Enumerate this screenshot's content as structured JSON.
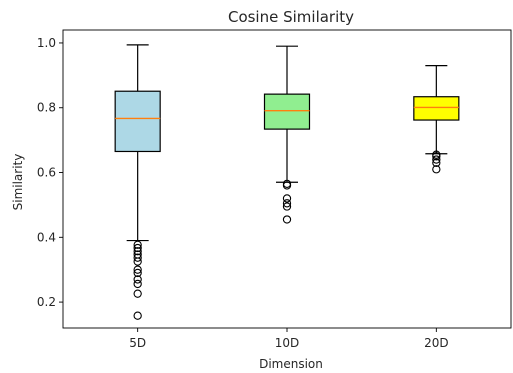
{
  "chart_data": {
    "type": "box",
    "title": "Cosine Similarity",
    "xlabel": "Dimension",
    "ylabel": "Similarity",
    "ylim": [
      0.12,
      1.04
    ],
    "yticks": [
      0.2,
      0.4,
      0.6,
      0.8,
      1.0
    ],
    "ytick_labels": [
      "0.2",
      "0.4",
      "0.6",
      "0.8",
      "1.0"
    ],
    "grid": false,
    "categories": [
      "5D",
      "10D",
      "20D"
    ],
    "boxes": [
      {
        "category": "5D",
        "fill": "#add8e6",
        "whisker_low": 0.39,
        "q1": 0.665,
        "median": 0.767,
        "q3": 0.851,
        "whisker_high": 0.994,
        "outliers": [
          0.377,
          0.367,
          0.357,
          0.347,
          0.337,
          0.325,
          0.3,
          0.29,
          0.27,
          0.256,
          0.226,
          0.158
        ]
      },
      {
        "category": "10D",
        "fill": "#90ee90",
        "whisker_low": 0.57,
        "q1": 0.734,
        "median": 0.791,
        "q3": 0.842,
        "whisker_high": 0.99,
        "outliers": [
          0.565,
          0.56,
          0.52,
          0.505,
          0.495,
          0.455
        ]
      },
      {
        "category": "20D",
        "fill": "#ffff00",
        "whisker_low": 0.658,
        "q1": 0.762,
        "median": 0.801,
        "q3": 0.834,
        "whisker_high": 0.93,
        "outliers": [
          0.655,
          0.65,
          0.64,
          0.63,
          0.61
        ]
      }
    ],
    "colors": {
      "median_line": "#ff7f0e",
      "box_edge": "#000000",
      "axis": "#000000"
    }
  }
}
